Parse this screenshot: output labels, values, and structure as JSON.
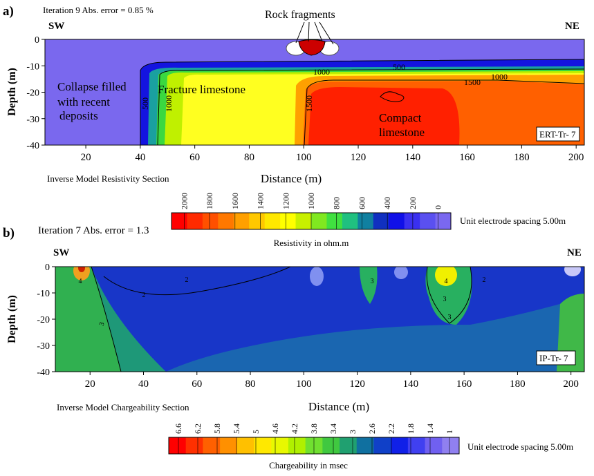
{
  "chart_data": [
    {
      "type": "contour",
      "panel_label": "a)",
      "iteration_text": "Iteration 9 Abs. error = 0.85 %",
      "left_label": "SW",
      "right_label": "NE",
      "tag": "ERT-Tr- 7",
      "x_label": "Distance (m)",
      "y_label": "Depth (m)",
      "section_label": "Inverse Model  Resistivity Section",
      "xlim": [
        5,
        203
      ],
      "xticks": [
        20,
        40,
        60,
        80,
        100,
        120,
        140,
        160,
        180,
        200
      ],
      "ylim": [
        -40,
        0
      ],
      "yticks": [
        0,
        -10,
        -20,
        -30,
        -40
      ],
      "annotations": [
        [
          "Rock fragments"
        ],
        [
          "Collapse filled",
          "with recent",
          " deposits"
        ],
        [
          "Fracture limestone"
        ],
        [
          "Compact",
          "limestone"
        ]
      ],
      "contour_labels": [
        500,
        1000,
        1500,
        1000,
        500,
        1500,
        1000
      ],
      "colorbar": {
        "label": "Resistivity in ohm.m",
        "spacing_text": "Unit electrode spacing 5.00m",
        "ticks": [
          2000,
          1800,
          1600,
          1400,
          1200,
          1000,
          800,
          600,
          400,
          200,
          0
        ],
        "colors": [
          "#ff0000",
          "#ff2a00",
          "#ff5000",
          "#ff7800",
          "#ffa000",
          "#ffc800",
          "#ffe800",
          "#ffff00",
          "#c8f000",
          "#80e820",
          "#40e040",
          "#20c080",
          "#1080a0",
          "#1030c0",
          "#1010e8",
          "#3a30f0",
          "#5a50f0",
          "#7a68f0"
        ]
      }
    },
    {
      "type": "contour",
      "panel_label": "b)",
      "iteration_text": "Iteration 7 Abs. error = 1.3",
      "left_label": "SW",
      "right_label": "NE",
      "tag": "IP-Tr- 7",
      "x_label": "Distance (m)",
      "y_label": "Depth (m)",
      "section_label": "Inverse Model Chargeability Section",
      "xlim": [
        7,
        205
      ],
      "xticks": [
        20,
        40,
        60,
        80,
        100,
        120,
        140,
        160,
        180,
        200
      ],
      "ylim": [
        -40,
        0
      ],
      "yticks": [
        0,
        -10,
        -20,
        -30,
        -40
      ],
      "annotations": [],
      "contour_labels": [
        4,
        3,
        2,
        2,
        3,
        4,
        3,
        3,
        2
      ],
      "colorbar": {
        "label": "Chargeability in msec",
        "spacing_text": "Unit electrode spacing 5.00m",
        "ticks": [
          6.6,
          6.2,
          5.8,
          5.4,
          5,
          4.6,
          4.2,
          3.8,
          3.4,
          3,
          2.6,
          2.2,
          1.8,
          1.4,
          1
        ],
        "colors": [
          "#ff0000",
          "#ff3000",
          "#ff6000",
          "#ff9000",
          "#ffc000",
          "#ffe800",
          "#e8f800",
          "#b0f000",
          "#70e030",
          "#40c840",
          "#20a070",
          "#1070a0",
          "#1040c8",
          "#1020e8",
          "#4040f0",
          "#7060f0",
          "#9080f0"
        ]
      }
    }
  ]
}
